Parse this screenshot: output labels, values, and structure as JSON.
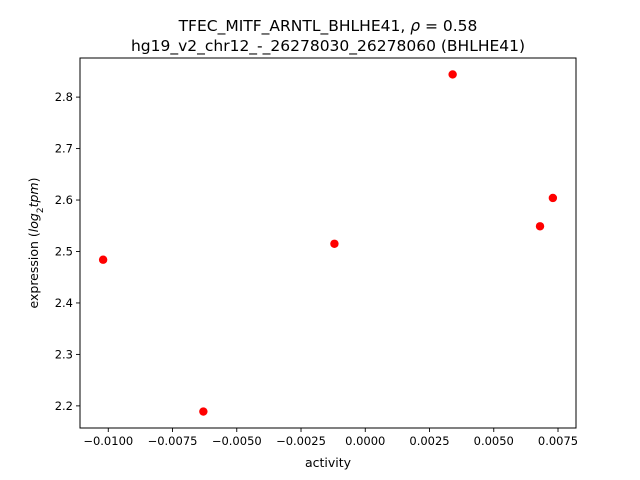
{
  "chart_data": {
    "type": "scatter",
    "title_line1_prefix": "TFEC_MITF_ARNTL_BHLHE41, ",
    "title_line1_rho": "ρ",
    "title_line1_suffix": " = 0.58",
    "title_line2": "hg19_v2_chr12_-_26278030_26278060 (BHLHE41)",
    "xlabel": "activity",
    "ylabel_prefix": "expression (",
    "ylabel_math": "log",
    "ylabel_sub": "2",
    "ylabel_math2": "tpm",
    "ylabel_suffix": ")",
    "xlim": [
      -0.0111,
      0.0082
    ],
    "ylim": [
      2.157,
      2.876
    ],
    "xticks": [
      -0.01,
      -0.0075,
      -0.005,
      -0.0025,
      0.0,
      0.0025,
      0.005,
      0.0075
    ],
    "xtick_labels": [
      "−0.0100",
      "−0.0075",
      "−0.0050",
      "−0.0025",
      "0.0000",
      "0.0025",
      "0.0050",
      "0.0075"
    ],
    "yticks": [
      2.2,
      2.3,
      2.4,
      2.5,
      2.6,
      2.7,
      2.8
    ],
    "ytick_labels": [
      "2.2",
      "2.3",
      "2.4",
      "2.5",
      "2.6",
      "2.7",
      "2.8"
    ],
    "grid": false,
    "marker_color": "#ff0000",
    "points": [
      {
        "x": -0.0102,
        "y": 2.484
      },
      {
        "x": -0.0063,
        "y": 2.189
      },
      {
        "x": -0.0012,
        "y": 2.515
      },
      {
        "x": 0.0034,
        "y": 2.844
      },
      {
        "x": 0.0068,
        "y": 2.549
      },
      {
        "x": 0.0073,
        "y": 2.604
      }
    ]
  }
}
